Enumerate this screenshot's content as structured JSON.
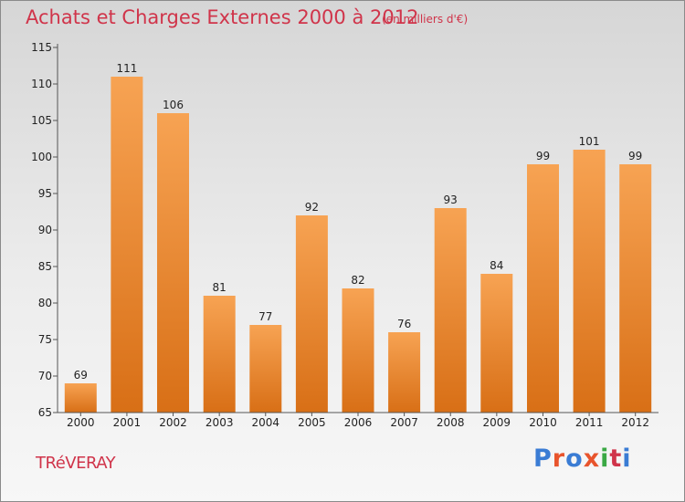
{
  "title": "Achats et Charges Externes 2000 à 2012",
  "subtitle": "(en milliers d'€)",
  "commune": "TRéVERAY",
  "logo": {
    "text": "Proxiti",
    "colors": [
      "#3a7cd4",
      "#e8542c",
      "#3a7cd4",
      "#e8542c",
      "#3aa844",
      "#d0344a",
      "#3a7cd4"
    ]
  },
  "colors": {
    "bar_light": "#f7a353",
    "bar_dark": "#d86f16",
    "title": "#d0344a"
  },
  "chart_data": {
    "type": "bar",
    "categories": [
      "2000",
      "2001",
      "2002",
      "2003",
      "2004",
      "2005",
      "2006",
      "2007",
      "2008",
      "2009",
      "2010",
      "2011",
      "2012"
    ],
    "values": [
      69,
      111,
      106,
      81,
      77,
      92,
      82,
      76,
      93,
      84,
      99,
      101,
      99
    ],
    "data_labels": [
      "69",
      "111",
      "106",
      "81",
      "77",
      "92",
      "82",
      "76",
      "93",
      "84",
      "99",
      "101",
      "99"
    ],
    "ylim": [
      65,
      115
    ],
    "yticks": [
      65,
      70,
      75,
      80,
      85,
      90,
      95,
      100,
      105,
      110,
      115
    ],
    "ytick_labels": [
      "65",
      "70",
      "75",
      "80",
      "85",
      "90",
      "95",
      "100",
      "105",
      "110",
      "115"
    ],
    "grid": false,
    "xlabel": "",
    "ylabel": ""
  }
}
